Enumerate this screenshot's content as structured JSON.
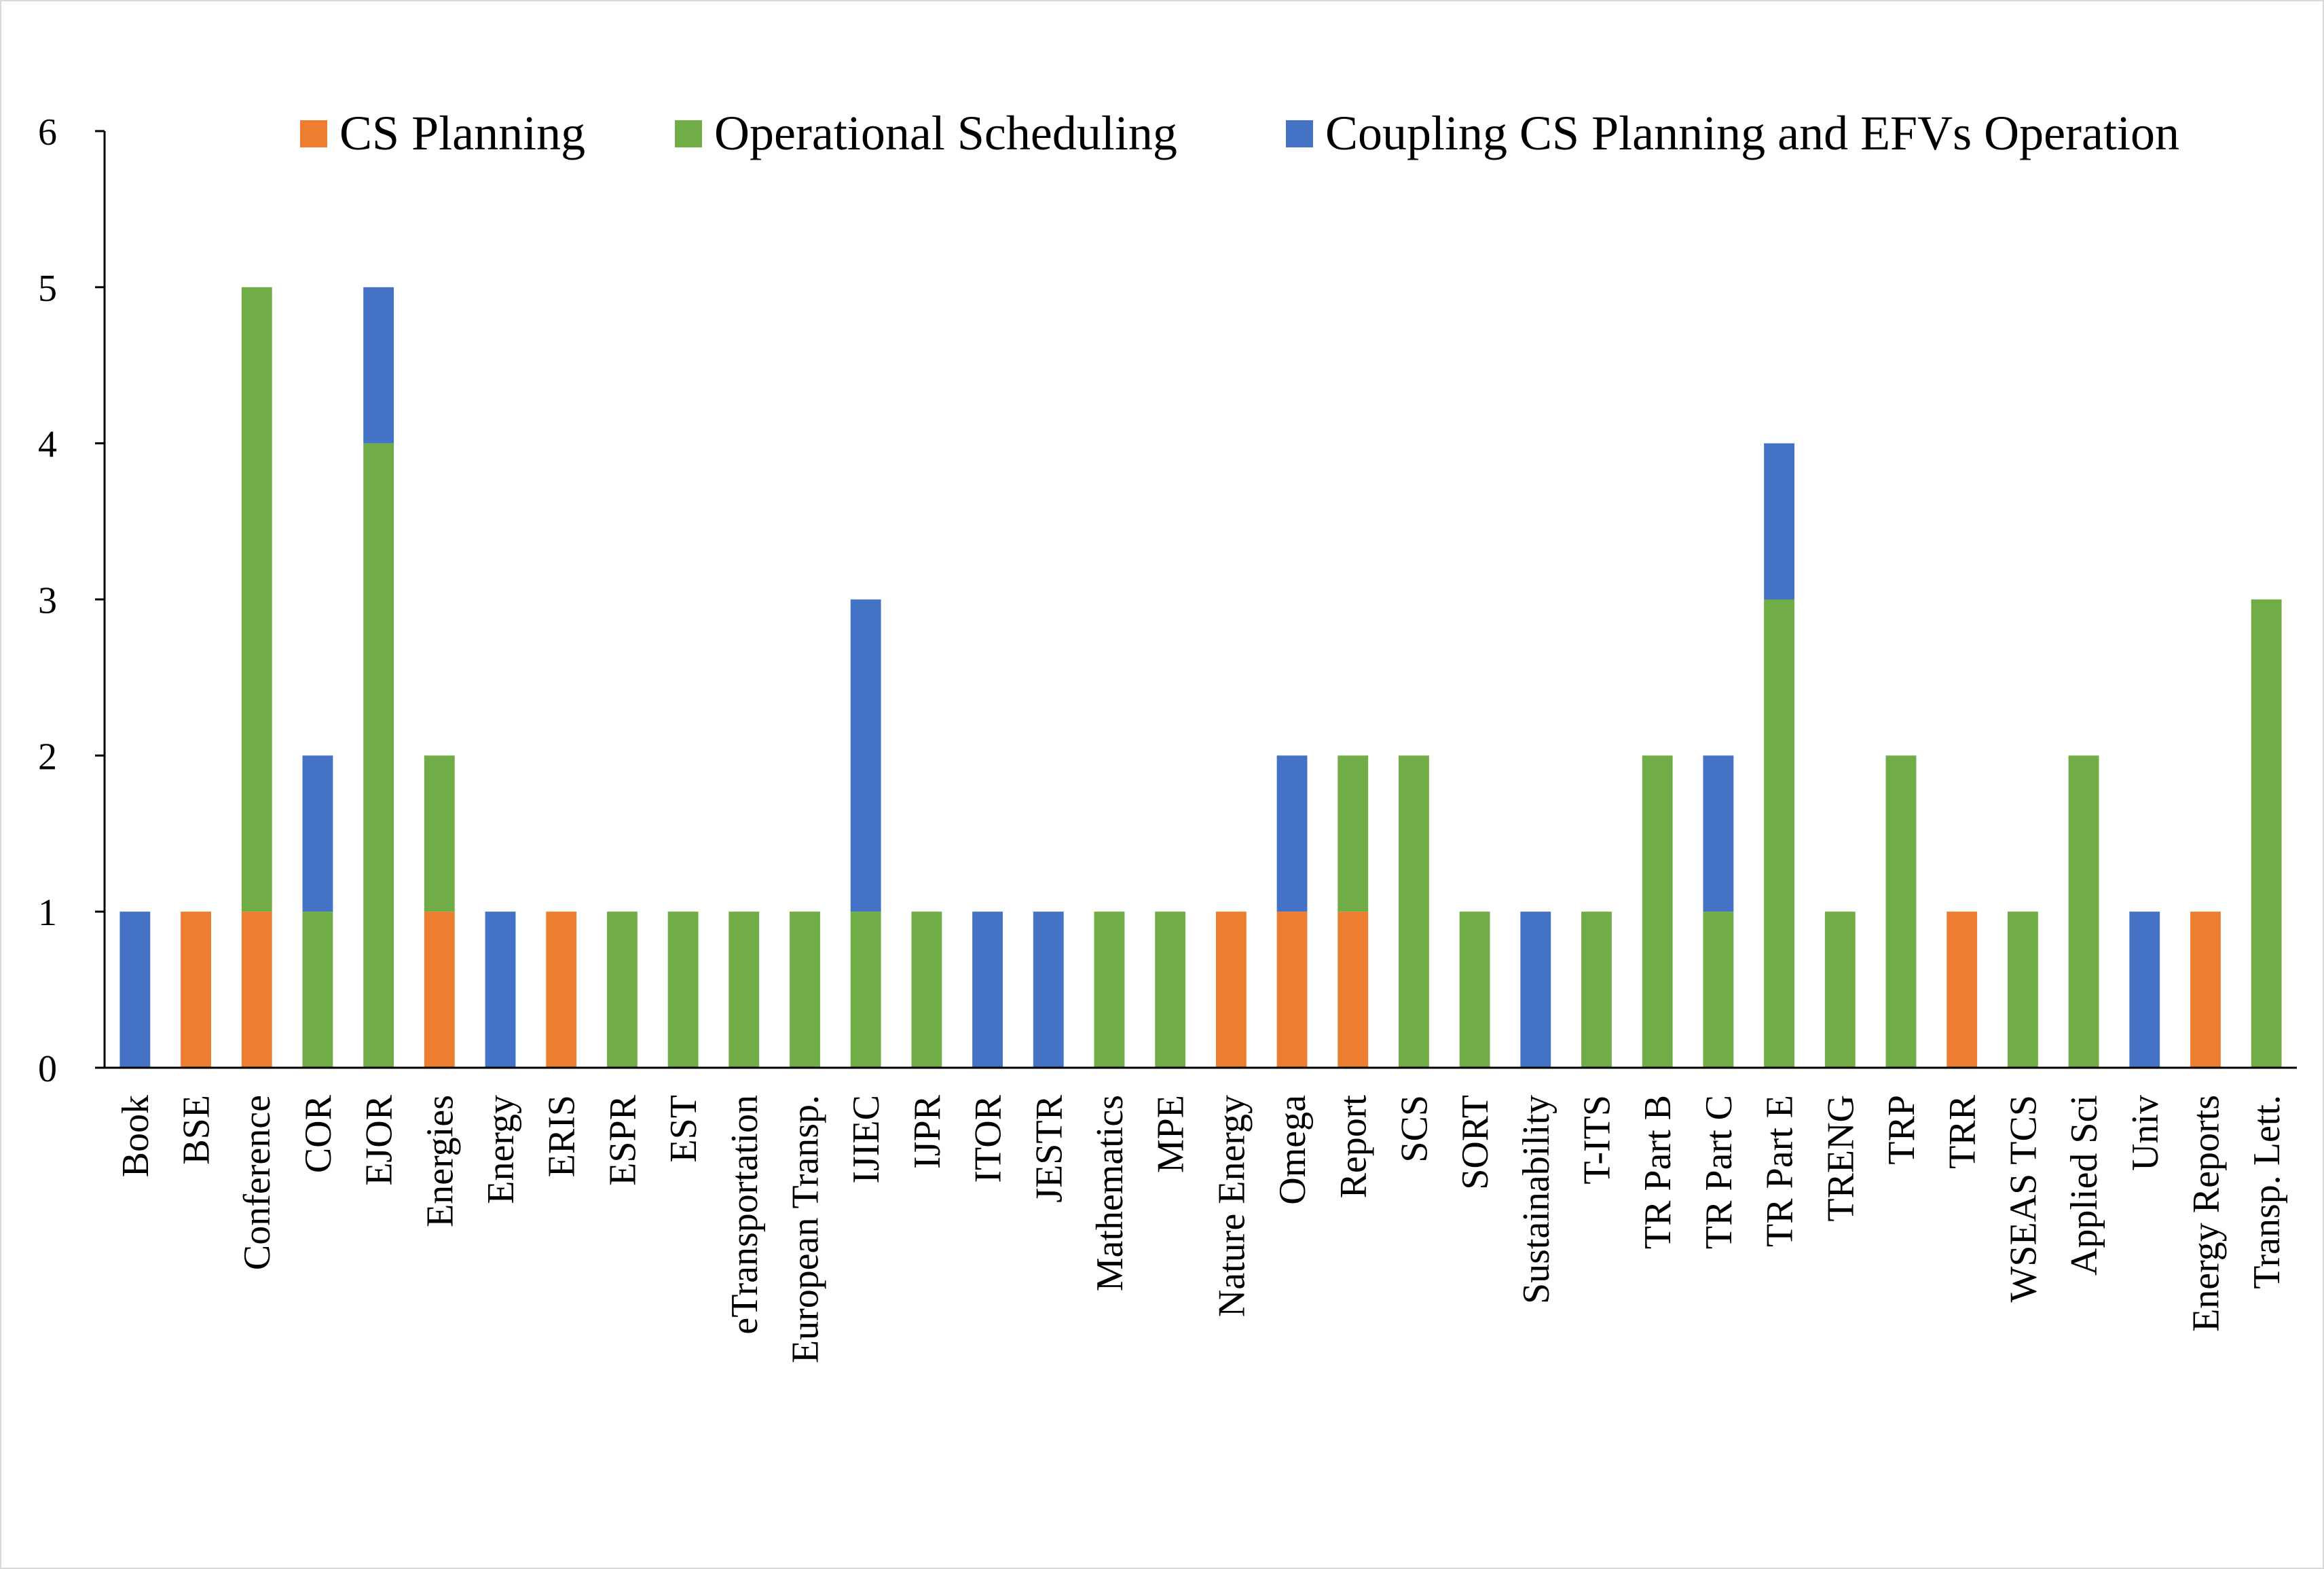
{
  "chart_data": {
    "type": "bar",
    "stacked": true,
    "title": "",
    "xlabel": "",
    "ylabel": "",
    "ylim": [
      0,
      6
    ],
    "yticks": [
      "0",
      "1",
      "2",
      "3",
      "4",
      "5",
      "6"
    ],
    "legend_position": "top-right",
    "categories": [
      "Book",
      "BSE",
      "Conference",
      "COR",
      "EJOR",
      "Energies",
      "Energy",
      "ERIS",
      "ESPR",
      "EST",
      "eTransportation",
      "European Transp.",
      "IJIEC",
      "IJPR",
      "ITOR",
      "JESTR",
      "Mathematics",
      "MPE",
      "Nature Energy",
      "Omega",
      "Report",
      "SCS",
      "SORT",
      "Sustainability",
      "T-ITS",
      "TR Part B",
      "TR Part C",
      "TR Part E",
      "TRENG",
      "TRP",
      "TRR",
      "WSEAS TCS",
      "Applied Sci",
      "Univ",
      "Energy Reports",
      "Transp. Lett."
    ],
    "series": [
      {
        "name": "CS Planning",
        "color": "#ED7D31",
        "values": [
          0,
          1,
          1,
          0,
          0,
          1,
          0,
          1,
          0,
          0,
          0,
          0,
          0,
          0,
          0,
          0,
          0,
          0,
          1,
          1,
          1,
          0,
          0,
          0,
          0,
          0,
          0,
          0,
          0,
          0,
          1,
          0,
          0,
          0,
          1,
          0
        ]
      },
      {
        "name": "Operational Scheduling",
        "color": "#70AD47",
        "values": [
          0,
          0,
          4,
          1,
          4,
          1,
          0,
          0,
          1,
          1,
          1,
          1,
          1,
          1,
          0,
          0,
          1,
          1,
          0,
          0,
          1,
          2,
          1,
          0,
          1,
          2,
          1,
          3,
          1,
          2,
          0,
          1,
          2,
          0,
          0,
          3
        ]
      },
      {
        "name": "Coupling CS Planning and EFVs Operation",
        "color": "#4472C4",
        "values": [
          1,
          0,
          0,
          1,
          1,
          0,
          1,
          0,
          0,
          0,
          0,
          0,
          2,
          0,
          1,
          1,
          0,
          0,
          0,
          1,
          0,
          0,
          0,
          1,
          0,
          0,
          1,
          1,
          0,
          0,
          0,
          0,
          0,
          1,
          0,
          0
        ]
      }
    ]
  }
}
